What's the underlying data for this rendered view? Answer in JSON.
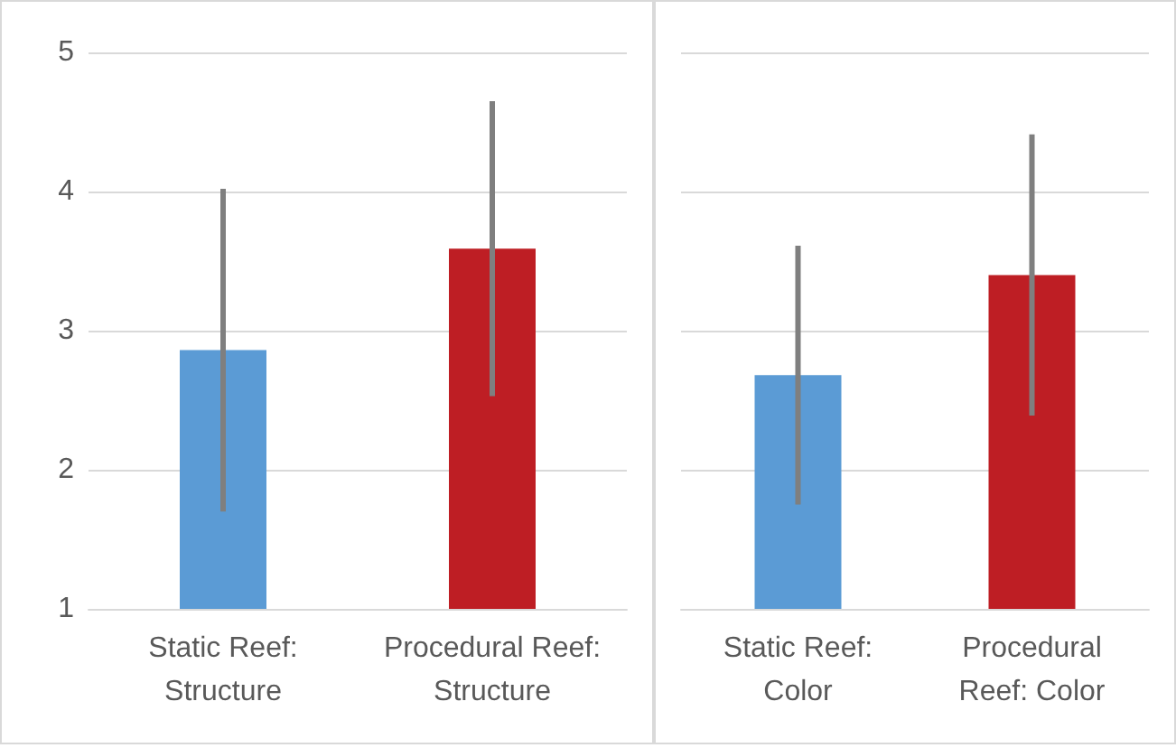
{
  "chart_data": [
    {
      "type": "bar",
      "categories": [
        "Static Reef:\nStructure",
        "Procedural Reef:\nStructure"
      ],
      "values": [
        2.86,
        3.59
      ],
      "colors": [
        "#5b9bd5",
        "#be1e24"
      ],
      "errors": [
        1.16,
        1.06
      ],
      "ylim": [
        1,
        5
      ],
      "yticks": [
        1,
        2,
        3,
        4,
        5
      ],
      "grid": "y"
    },
    {
      "type": "bar",
      "categories": [
        "Static Reef:\nColor",
        "Procedural\nReef: Color"
      ],
      "values": [
        2.68,
        3.4
      ],
      "colors": [
        "#5b9bd5",
        "#be1e24"
      ],
      "errors": [
        0.93,
        1.01
      ],
      "ylim": [
        1,
        5
      ],
      "yticks": [
        1,
        2,
        3,
        4,
        5
      ],
      "grid": "y",
      "tick_labels": "x"
    }
  ]
}
